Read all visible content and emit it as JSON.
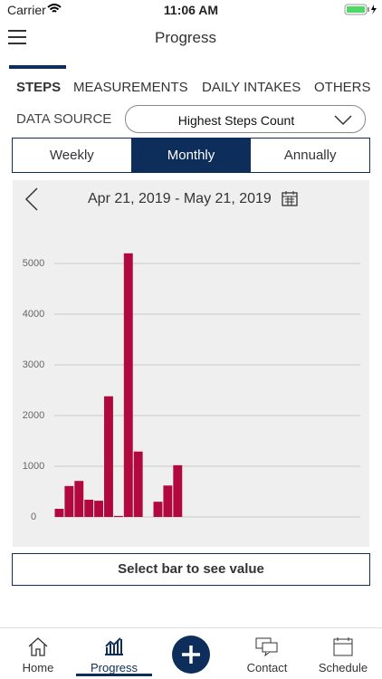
{
  "status_bar": {
    "carrier": "Carrier",
    "time": "11:06 AM"
  },
  "header": {
    "title": "Progress"
  },
  "tabs": [
    "STEPS",
    "MEASUREMENTS",
    "DAILY INTAKES",
    "OTHERS"
  ],
  "data_source": {
    "label": "DATA SOURCE",
    "value": "Highest Steps Count"
  },
  "periods": [
    "Weekly",
    "Monthly",
    "Annually"
  ],
  "date_range": "Apr 21, 2019 - May 21, 2019",
  "chart_data": {
    "type": "bar",
    "categories": [
      null,
      null,
      null,
      null,
      null,
      null,
      null,
      null,
      null,
      null,
      null,
      null,
      null,
      null,
      null,
      null,
      null,
      null,
      null,
      null,
      null,
      null,
      null,
      null,
      null,
      null,
      null,
      null,
      null,
      null,
      null
    ],
    "values": [
      160,
      610,
      710,
      340,
      320,
      2380,
      20,
      5200,
      1290,
      0,
      300,
      620,
      1020,
      0,
      0,
      0,
      0,
      0,
      0,
      0,
      0,
      0,
      0,
      0,
      0,
      0,
      0,
      0,
      0,
      0,
      0
    ],
    "color": "#b0083f",
    "ylim": [
      0,
      5700
    ],
    "yticks": [
      0,
      1000,
      2000,
      3000,
      4000,
      5000
    ],
    "grid": true
  },
  "value_button": "Select bar to see value",
  "nav": [
    "Home",
    "Progress",
    "Contact",
    "Schedule"
  ]
}
